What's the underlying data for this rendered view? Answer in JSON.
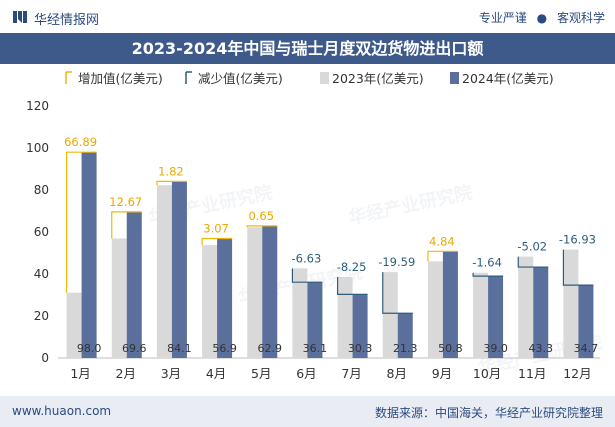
{
  "header": {
    "brand": "华经情报网",
    "tag1": "专业严谨",
    "tag_sep": "●",
    "tag2": "客观科学"
  },
  "title": "2023-2024年中国与瑞士月度双边货物进出口额",
  "footer": {
    "url": "www.huaon.com",
    "source": "数据来源：中国海关，华经产业研究院整理"
  },
  "watermark": "华经产业研究院",
  "colors": {
    "increase": "#f2b705",
    "decrease": "#2e5d7d",
    "bar2023": "#d9d9d9",
    "bar2024": "#5a6f9b",
    "header": "#3d5a8a"
  },
  "chart_data": {
    "type": "bar",
    "title": "2023-2024年中国与瑞士月度双边货物进出口额",
    "categories": [
      "1月",
      "2月",
      "3月",
      "4月",
      "5月",
      "6月",
      "7月",
      "8月",
      "9月",
      "10月",
      "11月",
      "12月"
    ],
    "series": [
      {
        "name": "2023年(亿美元)",
        "values": [
          31.1,
          56.9,
          82.3,
          53.8,
          62.3,
          42.7,
          38.6,
          40.9,
          46.0,
          40.6,
          48.3,
          51.6
        ]
      },
      {
        "name": "2024年(亿美元)",
        "values": [
          98.0,
          69.6,
          84.1,
          56.9,
          62.9,
          36.1,
          30.3,
          21.3,
          50.8,
          39.0,
          43.3,
          34.7
        ]
      }
    ],
    "changes": [
      66.89,
      12.67,
      1.82,
      3.07,
      0.65,
      -6.63,
      -8.25,
      -19.59,
      4.84,
      -1.64,
      -5.02,
      -16.93
    ],
    "legend": [
      "增加值(亿美元)",
      "减少值(亿美元)",
      "2023年(亿美元)",
      "2024年(亿美元)"
    ],
    "ylim": [
      0,
      120
    ],
    "yticks": [
      "0",
      "20",
      "40",
      "60",
      "80",
      "100",
      "120"
    ],
    "value_labels": [
      "98.0",
      "69.6",
      "84.1",
      "56.9",
      "62.9",
      "36.1",
      "30.3",
      "21.3",
      "50.8",
      "39.0",
      "43.3",
      "34.7"
    ],
    "change_labels": [
      "66.89",
      "12.67",
      "1.82",
      "3.07",
      "0.65",
      "-6.63",
      "-8.25",
      "-19.59",
      "4.84",
      "-1.64",
      "-5.02",
      "-16.93"
    ],
    "legend_position": "top",
    "grid": false
  }
}
